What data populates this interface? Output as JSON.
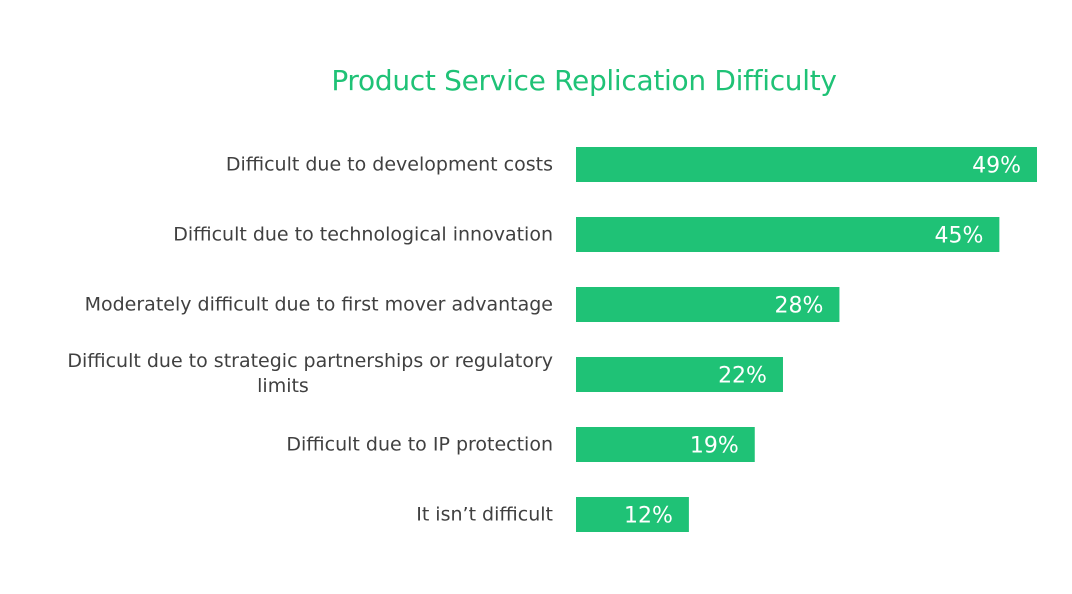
{
  "chart_data": {
    "type": "bar",
    "orientation": "horizontal",
    "title": "Product Service Replication Difficulty",
    "xlabel": "",
    "ylabel": "",
    "categories": [
      [
        "Difficult due to development costs"
      ],
      [
        "Difficult due to technological innovation"
      ],
      [
        "Moderately difficult due to first mover advantage"
      ],
      [
        "Difficult due to strategic partnerships or regulatory",
        "limits"
      ],
      [
        "Difficult due to IP protection"
      ],
      [
        "It isn’t difficult"
      ]
    ],
    "values": [
      49,
      45,
      28,
      22,
      19,
      12
    ],
    "value_labels": [
      "49%",
      "45%",
      "28%",
      "22%",
      "19%",
      "12%"
    ],
    "xlim": [
      0,
      49
    ],
    "grid": false,
    "legend": "none",
    "colors": {
      "bar": "#1FC276",
      "title": "#1FC276",
      "label": "#404040",
      "value_label": "#ffffff"
    }
  }
}
